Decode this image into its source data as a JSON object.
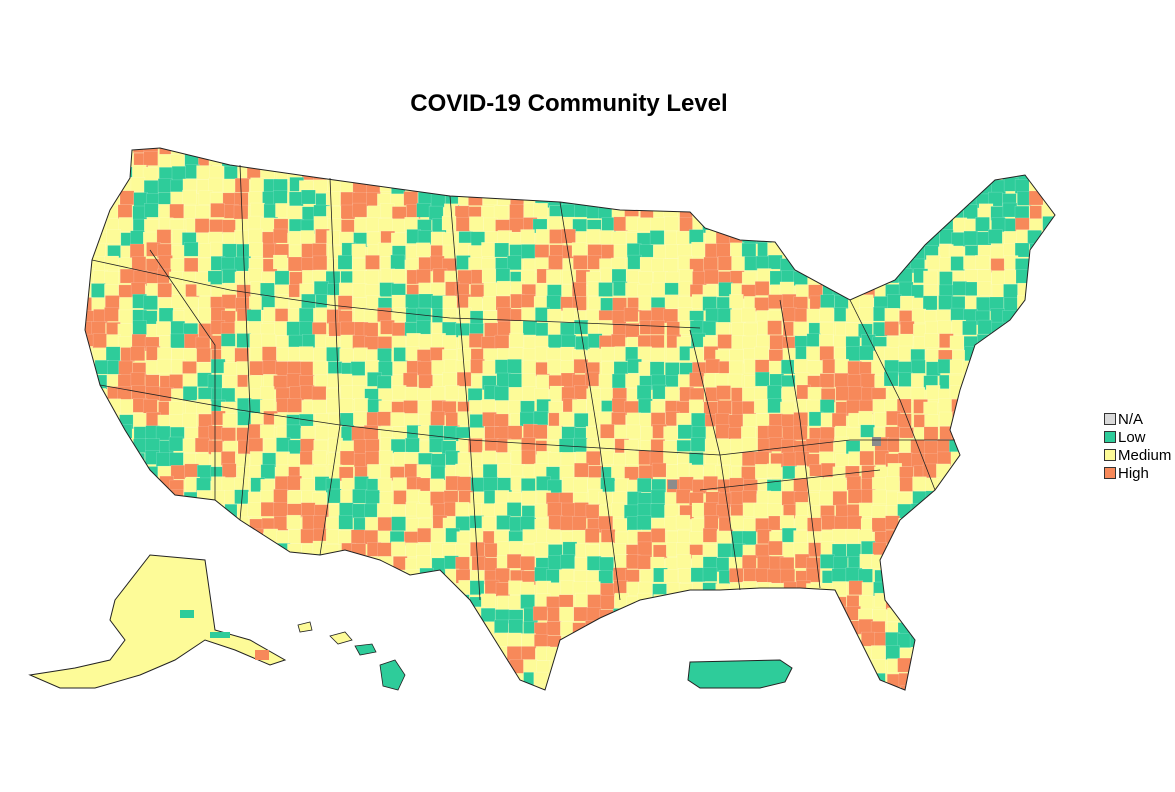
{
  "title": "COVID-19 Community Level",
  "colors": {
    "na": "#d9d9d9",
    "low": "#2ecc9a",
    "medium": "#fdfb98",
    "high": "#f7895a",
    "border": "#222222"
  },
  "legend": [
    {
      "key": "na",
      "label": "N/A"
    },
    {
      "key": "low",
      "label": "Low"
    },
    {
      "key": "medium",
      "label": "Medium"
    },
    {
      "key": "high",
      "label": "High"
    }
  ]
}
